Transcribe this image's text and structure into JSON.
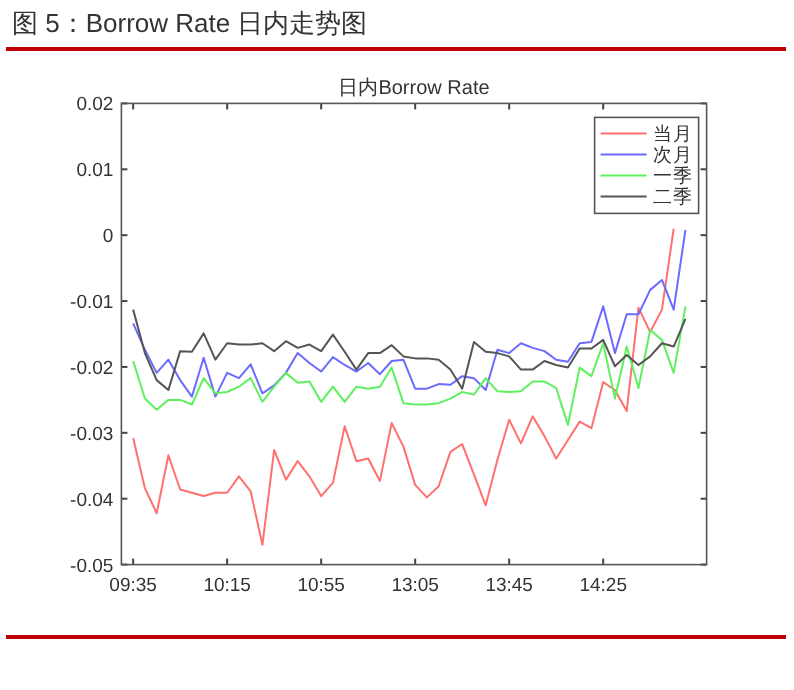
{
  "chart_data": {
    "type": "line",
    "title": "图 5：Borrow Rate 日内走势图",
    "subtitle": "日内Borrow Rate",
    "categories": [
      "09:35",
      null,
      null,
      null,
      null,
      null,
      null,
      null,
      "10:15",
      null,
      null,
      null,
      null,
      null,
      null,
      null,
      "10:55",
      null,
      null,
      null,
      null,
      null,
      null,
      null,
      "13:05",
      null,
      null,
      null,
      null,
      null,
      null,
      null,
      "13:45",
      null,
      null,
      null,
      null,
      null,
      null,
      null,
      "14:25",
      null,
      null,
      null,
      null,
      null,
      null,
      null
    ],
    "ylim": [
      -0.05,
      0.02
    ],
    "yticks": [
      -0.05,
      -0.04,
      -0.03,
      -0.02,
      -0.01,
      0,
      0.01,
      0.02
    ],
    "grid": false,
    "legend": "top right",
    "marker": "none",
    "line_style": "solid",
    "series": [
      {
        "name": "当月",
        "color": "#ff7070",
        "values": [
          -0.0308,
          -0.0384,
          -0.0422,
          -0.0334,
          -0.0386,
          -0.0391,
          -0.0396,
          -0.0391,
          -0.0391,
          -0.0366,
          -0.0389,
          -0.047,
          -0.0326,
          -0.0371,
          -0.0343,
          -0.0366,
          -0.0396,
          -0.0376,
          -0.029,
          -0.0343,
          -0.0339,
          -0.0373,
          -0.0285,
          -0.0321,
          -0.0379,
          -0.0398,
          -0.0381,
          -0.0329,
          -0.0317,
          -0.0363,
          -0.041,
          -0.0341,
          -0.028,
          -0.0316,
          -0.0275,
          -0.0305,
          -0.0339,
          -0.0311,
          -0.0283,
          -0.0293,
          -0.0223,
          -0.0235,
          -0.0267,
          -0.011,
          -0.0147,
          -0.0113,
          0.001,
          null
        ]
      },
      {
        "name": "次月",
        "color": "#6b6bff",
        "values": [
          -0.0134,
          -0.0174,
          -0.0209,
          -0.0189,
          -0.022,
          -0.0245,
          -0.0186,
          -0.0245,
          -0.0209,
          -0.0217,
          -0.0196,
          -0.024,
          -0.0228,
          -0.0209,
          -0.0179,
          -0.0194,
          -0.0207,
          -0.0185,
          -0.0197,
          -0.0207,
          -0.0194,
          -0.0211,
          -0.0191,
          -0.0189,
          -0.0233,
          -0.0233,
          -0.0226,
          -0.0227,
          -0.0214,
          -0.0217,
          -0.0235,
          -0.0174,
          -0.0179,
          -0.0164,
          -0.0171,
          -0.0176,
          -0.0189,
          -0.0192,
          -0.0164,
          -0.0162,
          -0.0108,
          -0.0179,
          -0.012,
          -0.012,
          -0.0083,
          -0.0068,
          -0.0113,
          0.0008
        ]
      },
      {
        "name": "一季",
        "color": "#5ff05f",
        "values": [
          -0.0191,
          -0.0248,
          -0.0265,
          -0.025,
          -0.025,
          -0.0257,
          -0.0217,
          -0.024,
          -0.0238,
          -0.023,
          -0.0217,
          -0.0253,
          -0.023,
          -0.0209,
          -0.0224,
          -0.0222,
          -0.0253,
          -0.023,
          -0.0253,
          -0.023,
          -0.0233,
          -0.023,
          -0.0201,
          -0.0255,
          -0.0257,
          -0.0257,
          -0.0255,
          -0.0248,
          -0.0238,
          -0.0242,
          -0.0217,
          -0.0237,
          -0.0238,
          -0.0237,
          -0.0222,
          -0.0222,
          -0.0232,
          -0.0288,
          -0.0201,
          -0.0214,
          -0.0164,
          -0.0248,
          -0.0169,
          -0.0232,
          -0.0144,
          -0.0159,
          -0.0209,
          -0.0108
        ]
      },
      {
        "name": "二季",
        "color": "#555555",
        "values": [
          -0.0113,
          -0.0179,
          -0.022,
          -0.0235,
          -0.0176,
          -0.0177,
          -0.0149,
          -0.0189,
          -0.0164,
          -0.0166,
          -0.0166,
          -0.0164,
          -0.0176,
          -0.0161,
          -0.0171,
          -0.0166,
          -0.0176,
          -0.0151,
          -0.0177,
          -0.0204,
          -0.0179,
          -0.0179,
          -0.0167,
          -0.0184,
          -0.0187,
          -0.0187,
          -0.0189,
          -0.0204,
          -0.0233,
          -0.0162,
          -0.0177,
          -0.0179,
          -0.0184,
          -0.0204,
          -0.0204,
          -0.0191,
          -0.0197,
          -0.0201,
          -0.0172,
          -0.0172,
          -0.0159,
          -0.0199,
          -0.0182,
          -0.0197,
          -0.0184,
          -0.0164,
          -0.0169,
          -0.0127
        ]
      }
    ]
  }
}
